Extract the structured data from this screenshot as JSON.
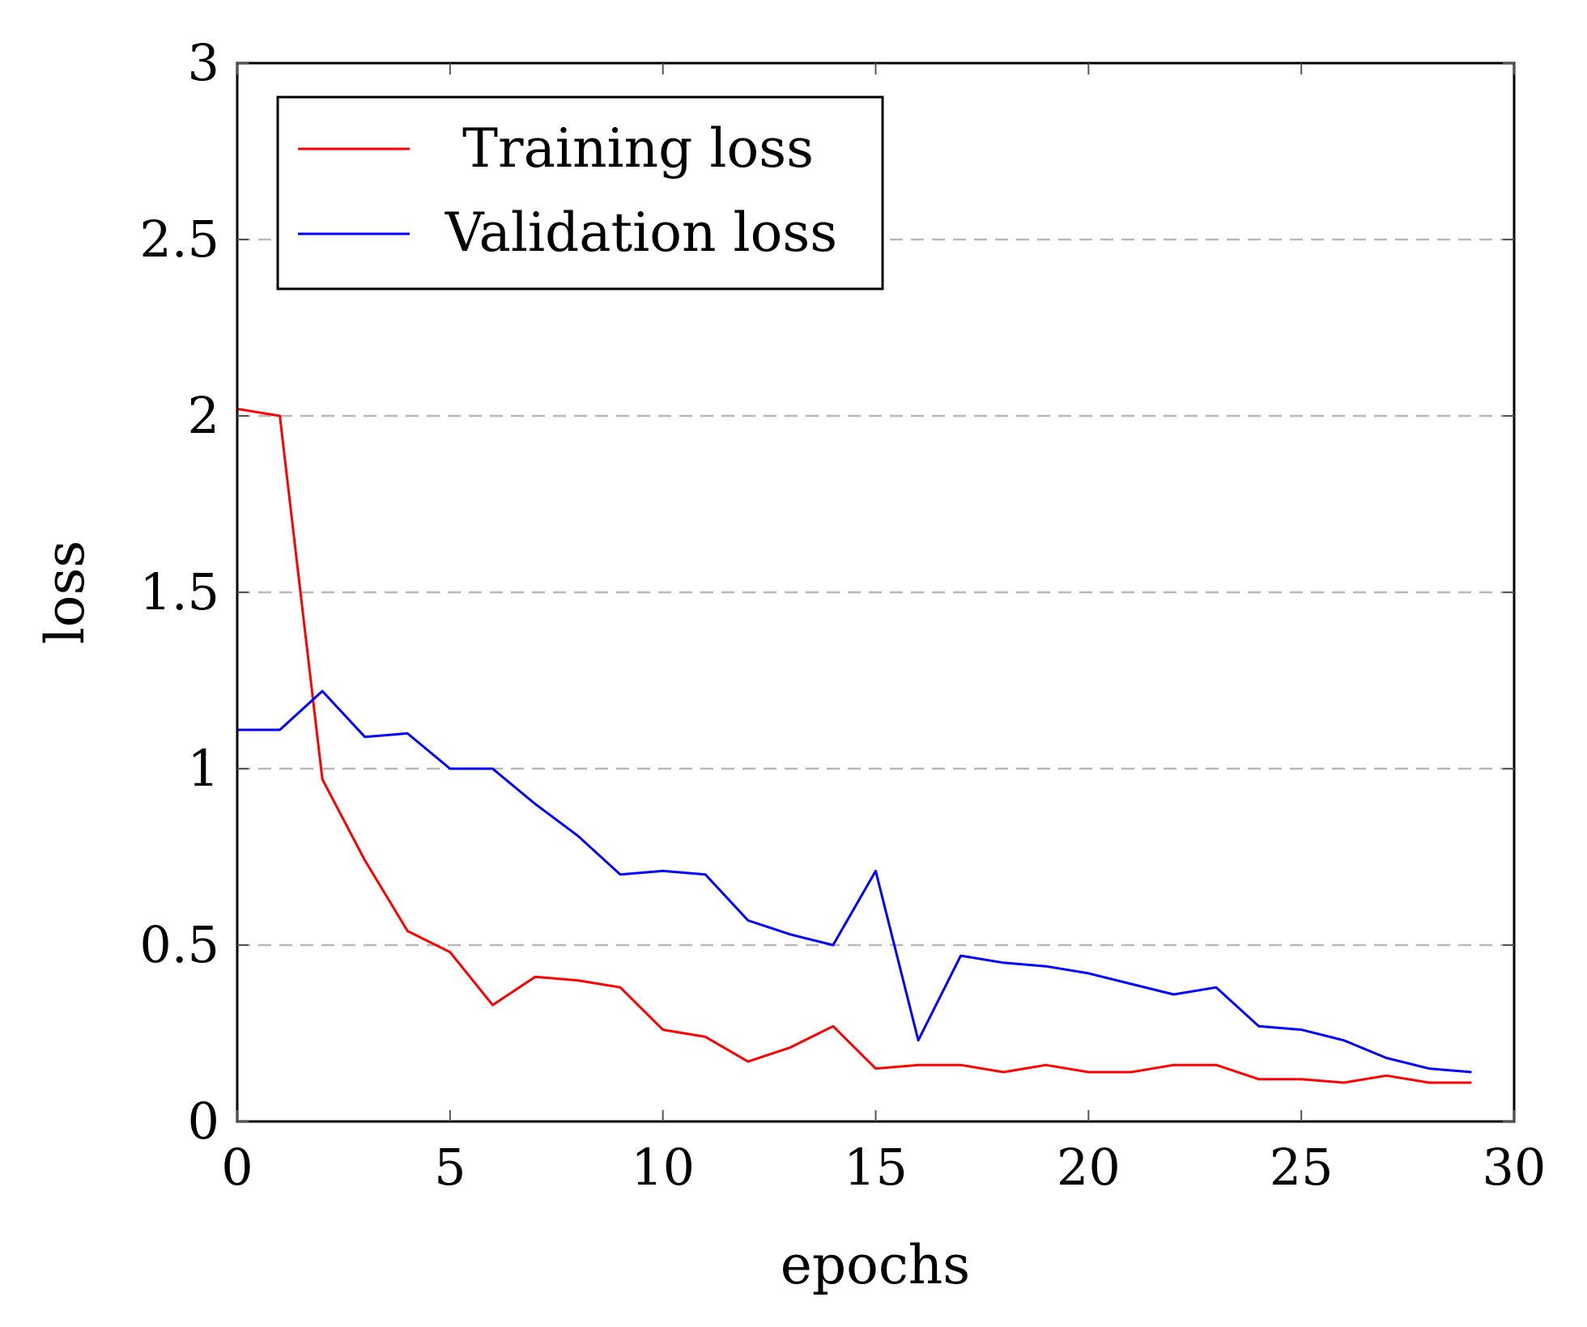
{
  "chart_data": {
    "type": "line",
    "xlabel": "epochs",
    "ylabel": "loss",
    "xlim": [
      0,
      30
    ],
    "ylim": [
      0,
      3
    ],
    "xticks": [
      0,
      5,
      10,
      15,
      20,
      25,
      30
    ],
    "xtick_labels": [
      "0",
      "5",
      "10",
      "15",
      "20",
      "25",
      "30"
    ],
    "yticks": [
      0,
      0.5,
      1,
      1.5,
      2,
      2.5,
      3
    ],
    "ytick_labels": [
      "0",
      "0.5",
      "1",
      "1.5",
      "2",
      "2.5",
      "3"
    ],
    "grid": "horizontal dashed",
    "legend_position": "top-left",
    "x": [
      0,
      1,
      2,
      3,
      4,
      5,
      6,
      7,
      8,
      9,
      10,
      11,
      12,
      13,
      14,
      15,
      16,
      17,
      18,
      19,
      20,
      21,
      22,
      23,
      24,
      25,
      26,
      27,
      28,
      29
    ],
    "series": [
      {
        "name": "Training loss",
        "color": "#ff0000",
        "values": [
          2.02,
          2.0,
          0.97,
          0.74,
          0.54,
          0.48,
          0.33,
          0.41,
          0.4,
          0.38,
          0.26,
          0.24,
          0.17,
          0.21,
          0.27,
          0.15,
          0.16,
          0.16,
          0.14,
          0.16,
          0.14,
          0.14,
          0.16,
          0.16,
          0.12,
          0.12,
          0.11,
          0.13,
          0.11,
          0.11
        ]
      },
      {
        "name": "Validation loss",
        "color": "#0000ff",
        "values": [
          1.11,
          1.11,
          1.22,
          1.09,
          1.1,
          1.0,
          1.0,
          0.9,
          0.81,
          0.7,
          0.71,
          0.7,
          0.57,
          0.53,
          0.5,
          0.71,
          0.23,
          0.47,
          0.45,
          0.44,
          0.42,
          0.39,
          0.36,
          0.38,
          0.27,
          0.26,
          0.23,
          0.18,
          0.15,
          0.14
        ]
      }
    ]
  }
}
